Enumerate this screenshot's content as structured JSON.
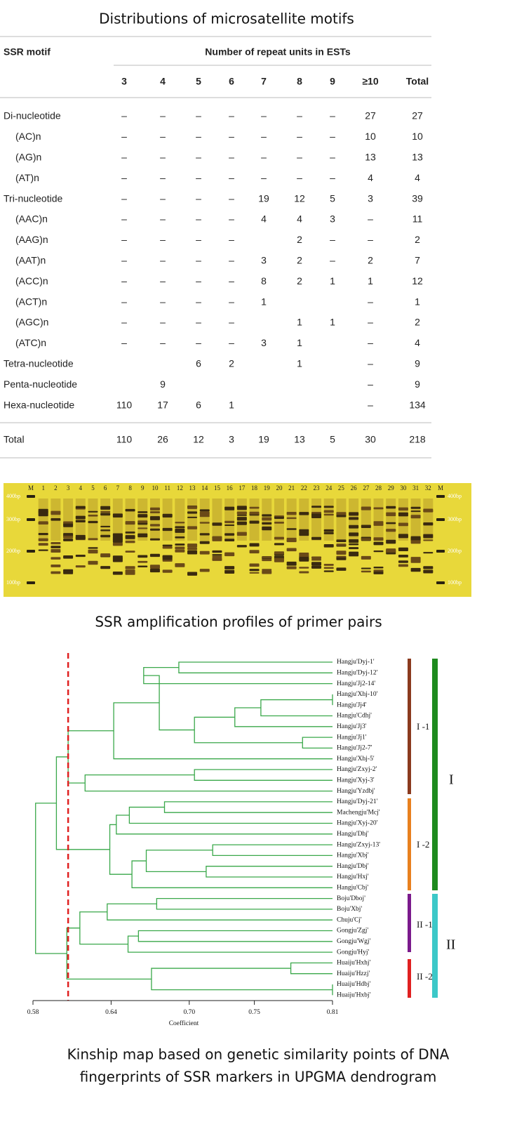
{
  "table": {
    "title": "Distributions of microsatellite motifs",
    "motif_header": "SSR motif",
    "group_header": "Number of repeat units in ESTs",
    "columns": [
      "3",
      "4",
      "5",
      "6",
      "7",
      "8",
      "9",
      "≥10",
      "Total"
    ],
    "rows": [
      [
        "Di-nucleotide",
        "–",
        "–",
        "–",
        "–",
        "–",
        "–",
        "–",
        27,
        27
      ],
      [
        "(AC)n",
        "–",
        "–",
        "–",
        "–",
        "–",
        "–",
        "–",
        10,
        10
      ],
      [
        "(AG)n",
        "–",
        "–",
        "–",
        "–",
        "–",
        "–",
        "–",
        13,
        13
      ],
      [
        "(AT)n",
        "–",
        "–",
        "–",
        "–",
        "–",
        "–",
        "–",
        4,
        4
      ],
      [
        "Tri-nucleotide",
        "–",
        "–",
        "–",
        "–",
        19,
        12,
        5,
        3,
        39
      ],
      [
        "(AAC)n",
        "–",
        "–",
        "–",
        "–",
        4,
        4,
        3,
        "–",
        11
      ],
      [
        "(AAG)n",
        "–",
        "–",
        "–",
        "–",
        null,
        2,
        "–",
        "–",
        2
      ],
      [
        "(AAT)n",
        "–",
        "–",
        "–",
        "–",
        3,
        2,
        "–",
        2,
        7
      ],
      [
        "(ACC)n",
        "–",
        "–",
        "–",
        "–",
        8,
        2,
        1,
        1,
        12
      ],
      [
        "(ACT)n",
        "–",
        "–",
        "–",
        "–",
        1,
        null,
        null,
        "–",
        1
      ],
      [
        "(AGC)n",
        "–",
        "–",
        "–",
        "–",
        null,
        1,
        1,
        "–",
        2
      ],
      [
        "(ATC)n",
        "–",
        "–",
        "–",
        "–",
        3,
        1,
        null,
        "–",
        4
      ],
      [
        "Tetra-nucleotide",
        null,
        null,
        6,
        2,
        null,
        1,
        null,
        "–",
        9
      ],
      [
        "Penta-nucleotide",
        null,
        9,
        null,
        null,
        null,
        null,
        null,
        "–",
        9
      ],
      [
        "Hexa-nucleotide",
        110,
        17,
        6,
        1,
        null,
        null,
        null,
        "–",
        134
      ]
    ],
    "total": [
      "Total",
      110,
      26,
      12,
      3,
      19,
      13,
      5,
      30,
      218
    ]
  },
  "gel": {
    "caption": "SSR amplification profiles of primer pairs",
    "lanes": [
      "M",
      "1",
      "2",
      "3",
      "4",
      "5",
      "6",
      "7",
      "8",
      "9",
      "10",
      "11",
      "12",
      "13",
      "14",
      "15",
      "16",
      "17",
      "18",
      "19",
      "20",
      "21",
      "22",
      "23",
      "24",
      "25",
      "26",
      "27",
      "28",
      "29",
      "30",
      "31",
      "32",
      "M"
    ],
    "ladder": [
      "400bp",
      "300bp",
      "200bp",
      "100bp"
    ]
  },
  "dendrogram": {
    "axis_label": "Coefficient",
    "xlim": [
      0.58,
      0.81
    ],
    "xticks": [
      0.58,
      0.64,
      {
        "value": 0.7,
        "label": "0.70"
      },
      0.75,
      0.81
    ],
    "cutoff": 0.607,
    "clusters": [
      "I -1",
      "I -2",
      "II -1",
      "II -2",
      "I",
      "II"
    ],
    "caption": [
      "Kinship map based on genetic similarity points of DNA",
      "fingerprints of SSR markers in UPGMA dendrogram"
    ],
    "tree": {
      "height": 0.582,
      "children": [
        {
          "height": 0.598,
          "children": [
            {
              "height": 0.607,
              "children": [
                {
                  "height": 0.642,
                  "children": [
                    {
                      "height": 0.677,
                      "children": [
                        {
                          "height": 0.665,
                          "children": [
                            {
                              "height": 0.692,
                              "children": [
                                {
                                  "label": "Hangju'Dyj-1'"
                                },
                                {
                                  "label": "Hangju'Dyj-12'"
                                }
                              ]
                            },
                            {
                              "label": "Hangju'Jj2-14'"
                            }
                          ]
                        },
                        {
                          "height": 0.704,
                          "children": [
                            {
                              "height": 0.735,
                              "children": [
                                {
                                  "height": 0.755,
                                  "children": [
                                    {
                                      "height": 0.81,
                                      "children": [
                                        {
                                          "label": "Hangju'Xhj-10'"
                                        },
                                        {
                                          "label": "Hangju'Jj4'"
                                        }
                                      ]
                                    },
                                    {
                                      "label": "Hangju'Cdhj'"
                                    }
                                  ]
                                },
                                {
                                  "label": "Hangju'Jj3'"
                                }
                              ]
                            },
                            {
                              "height": 0.787,
                              "children": [
                                {
                                  "label": "Hangju'Jj1'"
                                },
                                {
                                  "label": "Hangju'Jj2-7'"
                                }
                              ]
                            }
                          ]
                        }
                      ]
                    },
                    {
                      "label": "Hangju'Xhj-5'"
                    }
                  ]
                },
                {
                  "height": 0.62,
                  "children": [
                    {
                      "height": 0.704,
                      "children": [
                        {
                          "label": "Hangju'Zxyj-2'"
                        },
                        {
                          "label": "Hangju'Xyj-3'"
                        }
                      ]
                    },
                    {
                      "label": "Hangju'Yzdbj'"
                    }
                  ]
                }
              ]
            },
            {
              "height": 0.639,
              "children": [
                {
                  "height": 0.644,
                  "children": [
                    {
                      "height": 0.654,
                      "children": [
                        {
                          "height": 0.681,
                          "children": [
                            {
                              "label": "Hangju'Dyj-21'"
                            },
                            {
                              "label": "Machengju'Mcj'"
                            }
                          ]
                        },
                        {
                          "label": "Hangju'Xyj-20'"
                        }
                      ]
                    },
                    {
                      "label": "Hangju'Dhj'"
                    }
                  ]
                },
                {
                  "height": 0.656,
                  "children": [
                    {
                      "height": 0.667,
                      "children": [
                        {
                          "height": 0.718,
                          "children": [
                            {
                              "label": "Hangju'Zxyj-13'"
                            },
                            {
                              "label": "Hangju'Xbj'"
                            }
                          ]
                        },
                        {
                          "height": 0.713,
                          "children": [
                            {
                              "label": "Hangju'Dbj'"
                            },
                            {
                              "label": "Hangju'Hxj'"
                            }
                          ]
                        }
                      ]
                    },
                    {
                      "label": "Hangju'Cbj'"
                    }
                  ]
                }
              ]
            }
          ]
        },
        {
          "height": 0.606,
          "children": [
            {
              "height": 0.616,
              "children": [
                {
                  "height": 0.637,
                  "children": [
                    {
                      "height": 0.675,
                      "children": [
                        {
                          "label": "Boju'Dboj'"
                        },
                        {
                          "label": "Boju'Xbj'"
                        }
                      ]
                    },
                    {
                      "label": "Chuju'Cj'"
                    }
                  ]
                },
                {
                  "height": 0.653,
                  "children": [
                    {
                      "height": 0.661,
                      "children": [
                        {
                          "label": "Gongju'Zgj'"
                        },
                        {
                          "label": "Gongju'Wgj'"
                        }
                      ]
                    },
                    {
                      "label": "Gongju'Hyj'"
                    }
                  ]
                }
              ]
            },
            {
              "height": 0.671,
              "children": [
                {
                  "height": 0.778,
                  "children": [
                    {
                      "label": "Huaiju'Hxhj'"
                    },
                    {
                      "label": "Huaiju'Hzzj'"
                    }
                  ]
                },
                {
                  "height": 0.81,
                  "children": [
                    {
                      "label": "Huaiju'Hdbj'"
                    },
                    {
                      "label": "Huaiju'Hxbj'"
                    }
                  ]
                }
              ]
            }
          ]
        }
      ]
    }
  }
}
